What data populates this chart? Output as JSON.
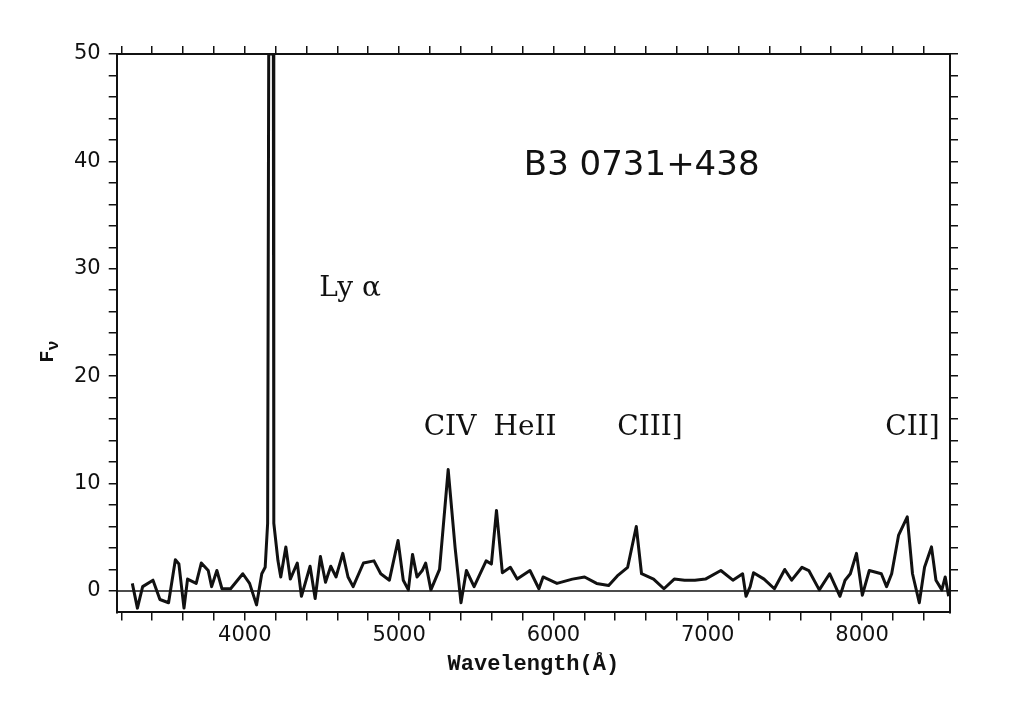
{
  "chart_data": {
    "type": "line",
    "xlabel": "Wavelength(Å)",
    "ylabel": "F$_{ν}$",
    "annotations": [
      "B3 0731+438",
      "Ly α",
      "CIV",
      "HeII",
      "CIII]",
      "CII]"
    ],
    "x": [
      3271,
      3304,
      3338,
      3405,
      3450,
      3506,
      3550,
      3573,
      3606,
      3629,
      3685,
      3718,
      3763,
      3785,
      3819,
      3852,
      3908,
      3987,
      4031,
      4076,
      4110,
      4132,
      4148,
      4155,
      4185,
      4188,
      4215,
      4233,
      4266,
      4295,
      4340,
      4367,
      4423,
      4456,
      4490,
      4523,
      4557,
      4591,
      4635,
      4669,
      4702,
      4769,
      4837,
      4881,
      4937,
      4993,
      5027,
      5060,
      5087,
      5116,
      5150,
      5172,
      5206,
      5262,
      5318,
      5363,
      5401,
      5436,
      5486,
      5564,
      5598,
      5631,
      5669,
      5721,
      5765,
      5848,
      5906,
      5933,
      6023,
      6123,
      6202,
      6280,
      6358,
      6414,
      6481,
      6537,
      6571,
      6649,
      6716,
      6783,
      6850,
      6917,
      6985,
      7085,
      7163,
      7226,
      7248,
      7275,
      7297,
      7365,
      7432,
      7499,
      7544,
      7611,
      7655,
      7723,
      7790,
      7857,
      7890,
      7924,
      7964,
      8002,
      8047,
      8125,
      8159,
      8192,
      8237,
      8293,
      8327,
      8371,
      8405,
      8450,
      8479,
      8517,
      8539,
      8561
    ],
    "series": [
      {
        "color": "#111111",
        "values": [
          0.7,
          -1.6,
          0.4,
          1.0,
          -0.8,
          -1.1,
          2.9,
          2.5,
          -1.6,
          1.1,
          0.7,
          2.6,
          1.9,
          0.4,
          1.9,
          0.2,
          0.2,
          1.6,
          0.7,
          -1.3,
          1.6,
          2.2,
          6.3,
          50,
          50,
          6.3,
          2.8,
          1.3,
          4.1,
          1.1,
          2.6,
          -0.5,
          2.3,
          -0.7,
          3.2,
          0.8,
          2.3,
          1.3,
          3.5,
          1.3,
          0.4,
          2.6,
          2.8,
          1.6,
          1.0,
          4.7,
          1.0,
          0.1,
          3.4,
          1.3,
          1.9,
          2.6,
          0.1,
          2.0,
          11.3,
          4.0,
          -1.1,
          1.9,
          0.4,
          2.8,
          2.5,
          7.5,
          1.7,
          2.2,
          1.1,
          1.9,
          0.2,
          1.3,
          0.7,
          1.1,
          1.3,
          0.7,
          0.5,
          1.4,
          2.2,
          6.0,
          1.6,
          1.1,
          0.2,
          1.1,
          1.0,
          1.0,
          1.1,
          1.9,
          1.0,
          1.6,
          -0.5,
          0.4,
          1.7,
          1.1,
          0.2,
          2.0,
          1.0,
          2.2,
          1.9,
          0.1,
          1.6,
          -0.5,
          1.0,
          1.6,
          3.5,
          -0.4,
          1.9,
          1.6,
          0.4,
          1.6,
          5.2,
          6.9,
          1.6,
          -1.1,
          2.2,
          4.1,
          1.0,
          0.1,
          1.3,
          -0.5
        ]
      }
    ],
    "xlim": [
      3170,
      8570
    ],
    "ylim": [
      -2,
      50
    ],
    "xticks": [
      {
        "value": 3200,
        "label": null
      },
      {
        "value": 3400,
        "label": null
      },
      {
        "value": 3600,
        "label": null
      },
      {
        "value": 3800,
        "label": null
      },
      4000,
      {
        "value": 4200,
        "label": null
      },
      {
        "value": 4400,
        "label": null
      },
      {
        "value": 4600,
        "label": null
      },
      {
        "value": 4800,
        "label": null
      },
      5000,
      {
        "value": 5200,
        "label": null
      },
      {
        "value": 5400,
        "label": null
      },
      {
        "value": 5600,
        "label": null
      },
      {
        "value": 5800,
        "label": null
      },
      6000,
      {
        "value": 6200,
        "label": null
      },
      {
        "value": 6400,
        "label": null
      },
      {
        "value": 6600,
        "label": null
      },
      {
        "value": 6800,
        "label": null
      },
      7000,
      {
        "value": 7200,
        "label": null
      },
      {
        "value": 7400,
        "label": null
      },
      {
        "value": 7600,
        "label": null
      },
      {
        "value": 7800,
        "label": null
      },
      8000,
      {
        "value": 8200,
        "label": null
      },
      {
        "value": 8400,
        "label": null
      }
    ],
    "yticks": [
      0,
      {
        "value": 2,
        "label": null
      },
      {
        "value": 4,
        "label": null
      },
      {
        "value": 6,
        "label": null
      },
      {
        "value": 8,
        "label": null
      },
      10,
      {
        "value": 12,
        "label": null
      },
      {
        "value": 14,
        "label": null
      },
      {
        "value": 16,
        "label": null
      },
      {
        "value": 18,
        "label": null
      },
      20,
      {
        "value": 22,
        "label": null
      },
      {
        "value": 24,
        "label": null
      },
      {
        "value": 26,
        "label": null
      },
      {
        "value": 28,
        "label": null
      },
      30,
      {
        "value": 32,
        "label": null
      },
      {
        "value": 34,
        "label": null
      },
      {
        "value": 36,
        "label": null
      },
      {
        "value": 38,
        "label": null
      },
      40,
      {
        "value": 42,
        "label": null
      },
      {
        "value": 44,
        "label": null
      },
      {
        "value": 46,
        "label": null
      },
      {
        "value": 48,
        "label": null
      },
      50
    ],
    "ref_lines": [
      {
        "axis": "y",
        "value": 0,
        "color": "#111111"
      }
    ],
    "grid": false,
    "legend": false,
    "marker": "none",
    "line_style": "solid"
  }
}
